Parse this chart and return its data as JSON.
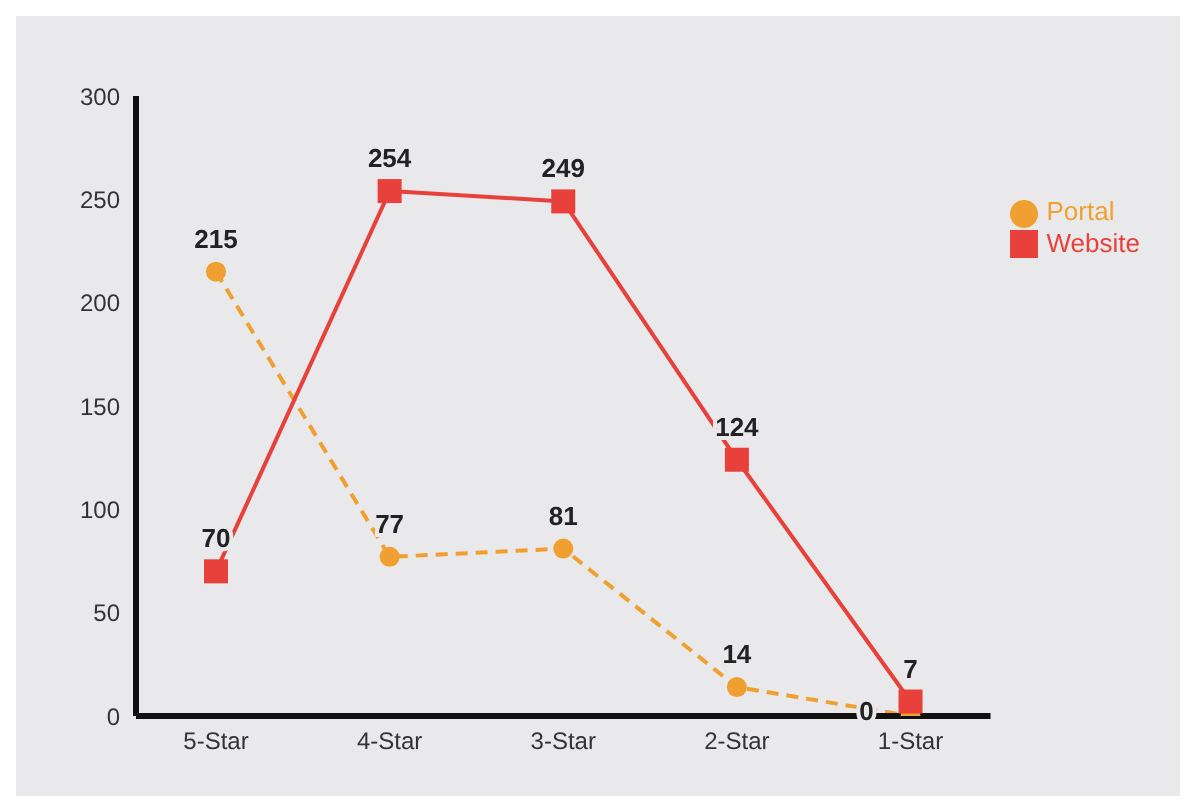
{
  "chart_data": {
    "type": "line",
    "categories": [
      "5-Star",
      "4-Star",
      "3-Star",
      "2-Star",
      "1-Star"
    ],
    "series": [
      {
        "name": "Portal",
        "color": "#f0a030",
        "values": [
          215,
          77,
          81,
          14,
          0
        ],
        "marker": "circle",
        "line_style": "dashed"
      },
      {
        "name": "Website",
        "color": "#e8403a",
        "values": [
          70,
          254,
          249,
          124,
          7
        ],
        "marker": "square",
        "line_style": "solid"
      }
    ],
    "ylim": [
      0,
      300
    ],
    "yticks": [
      0,
      50,
      100,
      150,
      200,
      250,
      300
    ],
    "grid": false,
    "legend": "top right",
    "data_labels": true
  }
}
